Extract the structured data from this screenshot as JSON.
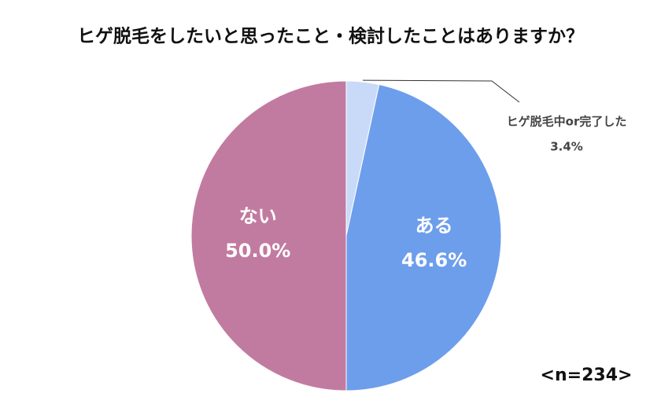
{
  "chart_data": {
    "type": "pie",
    "title": "ヒゲ脱毛をしたいと思ったこと・検討したことはありますか？",
    "categories": [
      "ヒゲ脱毛中or完了した",
      "ある",
      "ない"
    ],
    "values": [
      3.4,
      46.6,
      50
    ],
    "value_labels": [
      "3.4%",
      "46.6%",
      "50.0%"
    ],
    "colors": [
      "#c9daf8",
      "#6d9eeb",
      "#c27ba0"
    ],
    "annotation": "<n=234>"
  }
}
